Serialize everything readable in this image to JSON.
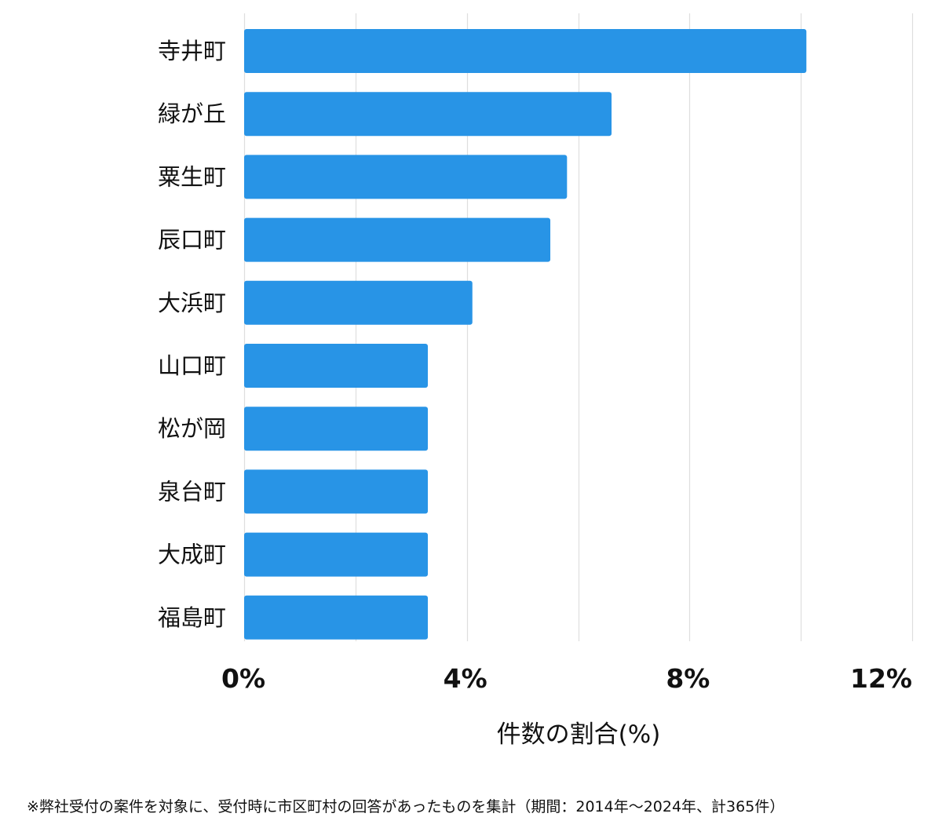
{
  "chart_data": {
    "type": "bar",
    "orientation": "horizontal",
    "categories": [
      "寺井町",
      "緑が丘",
      "粟生町",
      "辰口町",
      "大浜町",
      "山口町",
      "松が岡",
      "泉台町",
      "大成町",
      "福島町"
    ],
    "values": [
      10.1,
      6.6,
      5.8,
      5.5,
      4.1,
      3.3,
      3.3,
      3.3,
      3.3,
      3.3
    ],
    "xlim": [
      0,
      12
    ],
    "x_ticks": [
      0,
      4,
      8,
      12
    ],
    "x_tick_labels": [
      "0%",
      "4%",
      "8%",
      "12%"
    ],
    "xlabel": "件数の割合(%)",
    "grid": "vertical",
    "bar_color": "#2894e6",
    "gridline_color": "#dedede"
  },
  "footnote": "※弊社受付の案件を対象に、受付時に市区町村の回答があったものを集計（期間：2014年〜2024年、計365件）"
}
